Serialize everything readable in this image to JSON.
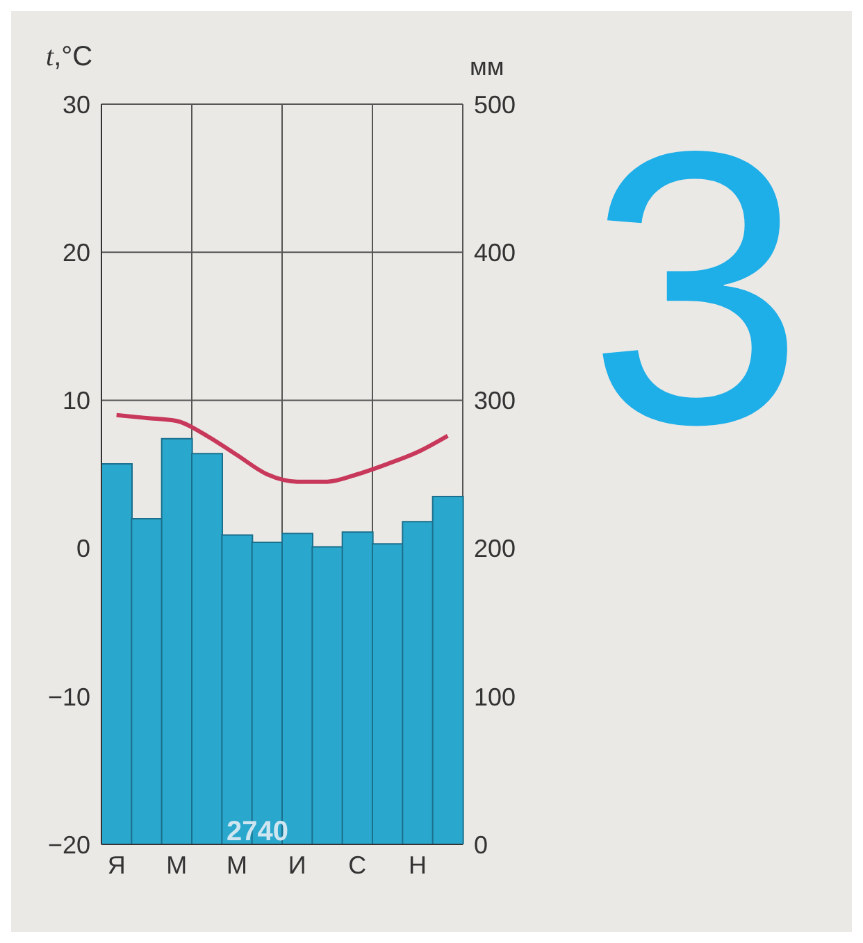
{
  "chart_data": {
    "type": "bar",
    "ylabel": "t,°C",
    "y2label": "мм",
    "categories": [
      "Я",
      null,
      "М",
      null,
      "М",
      null,
      "И",
      null,
      "С",
      null,
      "Н",
      null
    ],
    "series": [
      {
        "axis": "y2",
        "color": "#2aa7cc",
        "values": [
          257,
          220,
          274,
          264,
          209,
          204,
          210,
          201,
          211,
          203,
          218,
          235
        ]
      },
      {
        "type": "line",
        "axis": "y",
        "color": "#c8385a",
        "values": [
          9.0,
          8.8,
          8.6,
          7.6,
          6.3,
          5.0,
          4.5,
          4.5,
          5.0,
          5.7,
          6.5,
          7.6
        ]
      }
    ],
    "ylim": [
      -20,
      30
    ],
    "yticks": [
      -20,
      -10,
      0,
      10,
      20,
      30
    ],
    "y2lim": [
      0,
      500
    ],
    "y2ticks": [
      0,
      100,
      200,
      300,
      400,
      500
    ],
    "grid": true,
    "legend": false,
    "marker": "none",
    "line_style": "solid",
    "annotations": [
      "2740",
      "3"
    ]
  }
}
